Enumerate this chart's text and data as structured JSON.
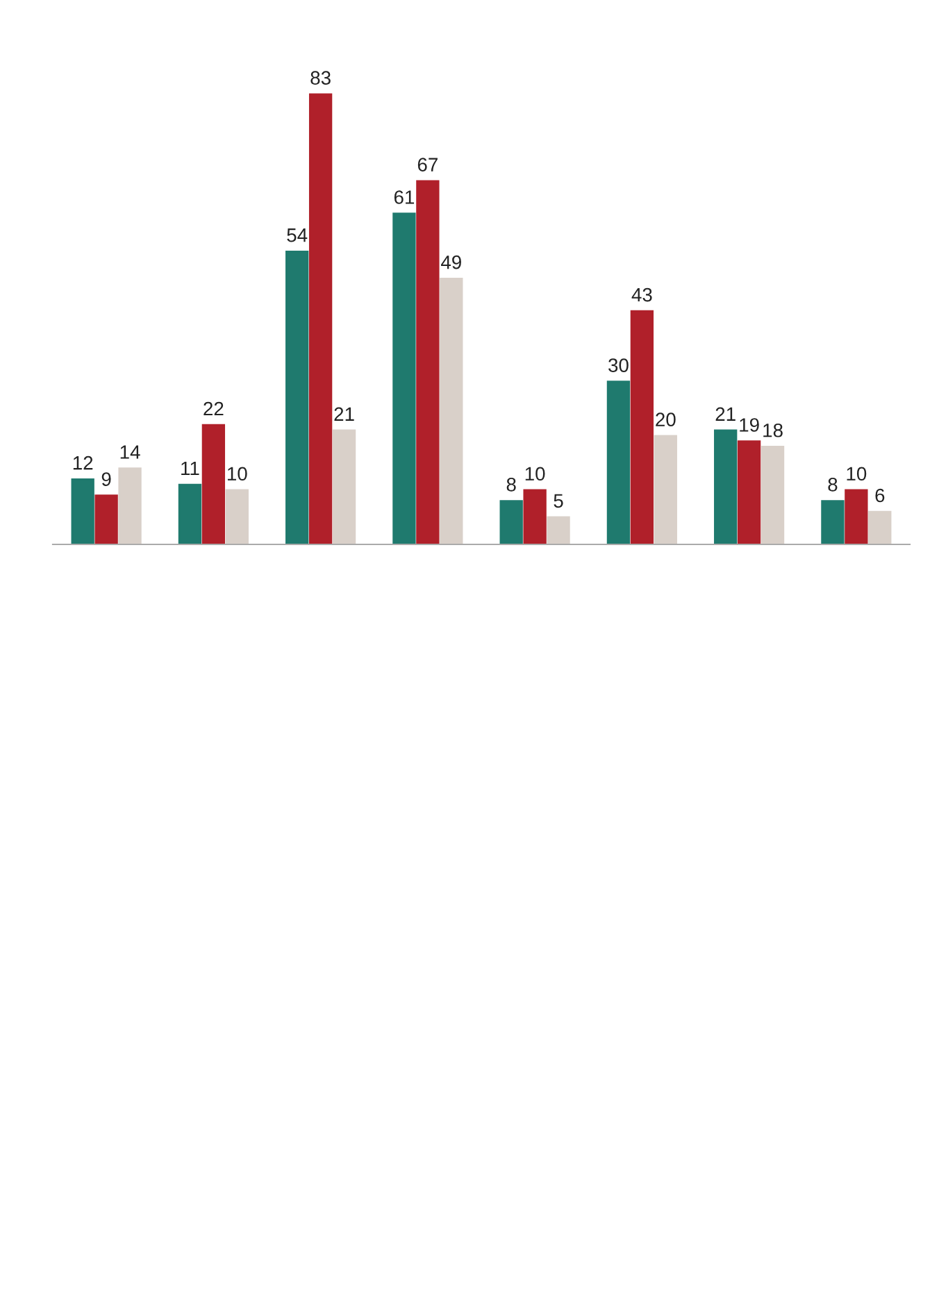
{
  "chart_data": {
    "type": "bar",
    "categories": [
      null,
      null,
      null,
      null,
      null,
      null,
      null,
      null
    ],
    "series": [
      {
        "color": "#1f7a6e",
        "values": [
          12,
          11,
          54,
          61,
          8,
          30,
          21,
          8
        ]
      },
      {
        "color": "#b0202a",
        "values": [
          9,
          22,
          83,
          67,
          10,
          43,
          19,
          10
        ]
      },
      {
        "color": "#d9d0c9",
        "values": [
          14,
          10,
          21,
          49,
          5,
          20,
          18,
          6
        ]
      }
    ],
    "data_labels": true,
    "grid": false,
    "legend": false
  }
}
